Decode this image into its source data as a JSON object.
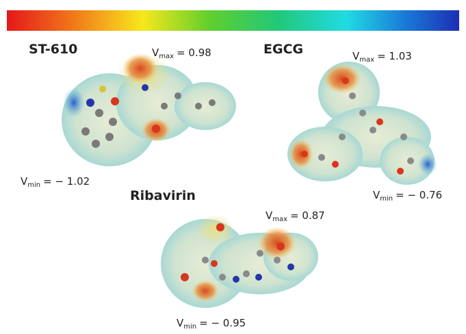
{
  "molecules": [
    {
      "name": "ST-610",
      "vmax": {
        "symbol": "V",
        "sub": "max",
        "text": "= 0.98"
      },
      "vmin": {
        "symbol": "V",
        "sub": "min",
        "text": "= − 1.02"
      }
    },
    {
      "name": "EGCG",
      "vmax": {
        "symbol": "V",
        "sub": "max",
        "text": "= 1.03"
      },
      "vmin": {
        "symbol": "V",
        "sub": "min",
        "text": "= − 0.76"
      }
    },
    {
      "name": "Ribavirin",
      "vmax": {
        "symbol": "V",
        "sub": "max",
        "text": "= 0.87"
      },
      "vmin": {
        "symbol": "V",
        "sub": "min",
        "text": "= − 0.95"
      }
    }
  ]
}
